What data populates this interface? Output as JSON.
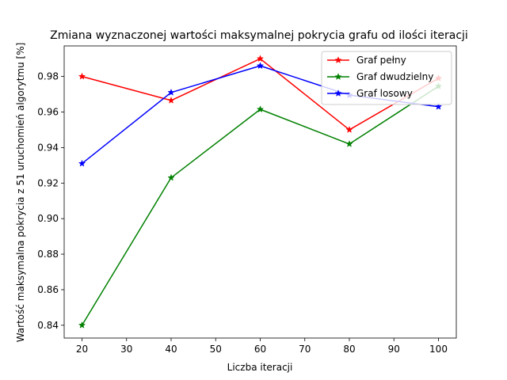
{
  "chart_data": {
    "type": "line",
    "title": "Zmiana wyznaczonej wartości maksymalnej pokrycia grafu od ilości iteracji",
    "xlabel": "Liczba iteracji",
    "ylabel": "Wartość maksymalna pokrycia z 51 uruchomień algorytmu [%]",
    "x": [
      20,
      40,
      60,
      80,
      100
    ],
    "xlim": [
      16,
      104
    ],
    "ylim": [
      0.8328,
      0.9972
    ],
    "xticks": [
      20,
      30,
      40,
      50,
      60,
      70,
      80,
      90,
      100
    ],
    "yticks": [
      0.84,
      0.86,
      0.88,
      0.9,
      0.92,
      0.94,
      0.96,
      0.98
    ],
    "ytick_labels": [
      "0.84",
      "0.86",
      "0.88",
      "0.90",
      "0.92",
      "0.94",
      "0.96",
      "0.98"
    ],
    "legend_position": "top-right",
    "grid": false,
    "series": [
      {
        "name": "Graf pełny",
        "color": "#ff0000",
        "marker": "star",
        "values": [
          0.98,
          0.9665,
          0.99,
          0.95,
          0.979
        ]
      },
      {
        "name": "Graf dwudzielny",
        "color": "#008000",
        "marker": "star",
        "values": [
          0.84,
          0.923,
          0.9615,
          0.942,
          0.9745
        ]
      },
      {
        "name": "Graf losowy",
        "color": "#0000ff",
        "marker": "star",
        "values": [
          0.931,
          0.971,
          0.986,
          0.9695,
          0.963
        ]
      }
    ]
  }
}
